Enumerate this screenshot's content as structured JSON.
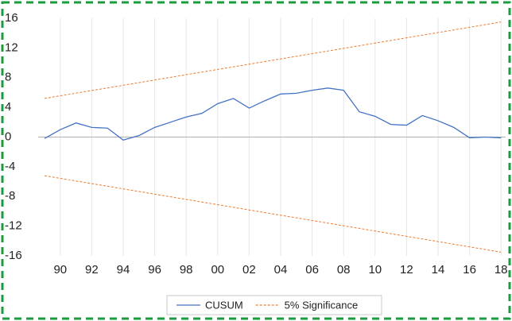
{
  "chart_data": {
    "type": "line",
    "categories": [
      null,
      "90",
      null,
      "92",
      null,
      "94",
      null,
      "96",
      null,
      "98",
      null,
      "00",
      null,
      "02",
      null,
      "04",
      null,
      "06",
      null,
      "08",
      null,
      "10",
      null,
      "12",
      null,
      "14",
      null,
      "16",
      null,
      "18"
    ],
    "series": [
      {
        "name": "CUSUM",
        "color": "#4472c4",
        "dash": false,
        "values": [
          -0.2,
          1.0,
          1.9,
          1.3,
          1.2,
          -0.4,
          0.2,
          1.3,
          2.0,
          2.7,
          3.2,
          4.5,
          5.2,
          3.9,
          4.9,
          5.8,
          5.9,
          6.3,
          6.6,
          6.3,
          3.4,
          2.8,
          1.7,
          1.6,
          2.9,
          2.2,
          1.3,
          -0.1,
          0.0,
          -0.1
        ]
      },
      {
        "name": "5% Significance",
        "color": "#ed7d31",
        "dash": true,
        "values": [
          5.2,
          5.56,
          5.91,
          6.27,
          6.62,
          6.98,
          7.33,
          7.69,
          8.04,
          8.4,
          8.75,
          9.11,
          9.46,
          9.82,
          10.17,
          10.53,
          10.88,
          11.24,
          11.59,
          11.95,
          12.3,
          12.66,
          13.01,
          13.37,
          13.72,
          14.08,
          14.43,
          14.79,
          15.14,
          15.5
        ]
      },
      {
        "color": "#ed7d31",
        "dash": true,
        "values": [
          -5.2,
          -5.56,
          -5.91,
          -6.27,
          -6.62,
          -6.98,
          -7.33,
          -7.69,
          -8.04,
          -8.4,
          -8.75,
          -9.11,
          -9.46,
          -9.82,
          -10.17,
          -10.53,
          -10.88,
          -11.24,
          -11.59,
          -11.95,
          -12.3,
          -12.66,
          -13.01,
          -13.37,
          -13.72,
          -14.08,
          -14.43,
          -14.79,
          -15.14,
          -15.5
        ]
      }
    ],
    "ylim": [
      -16,
      16
    ],
    "yticks": [
      -16,
      -12,
      -8,
      -4,
      0,
      4,
      8,
      12,
      16
    ],
    "grid": true
  }
}
